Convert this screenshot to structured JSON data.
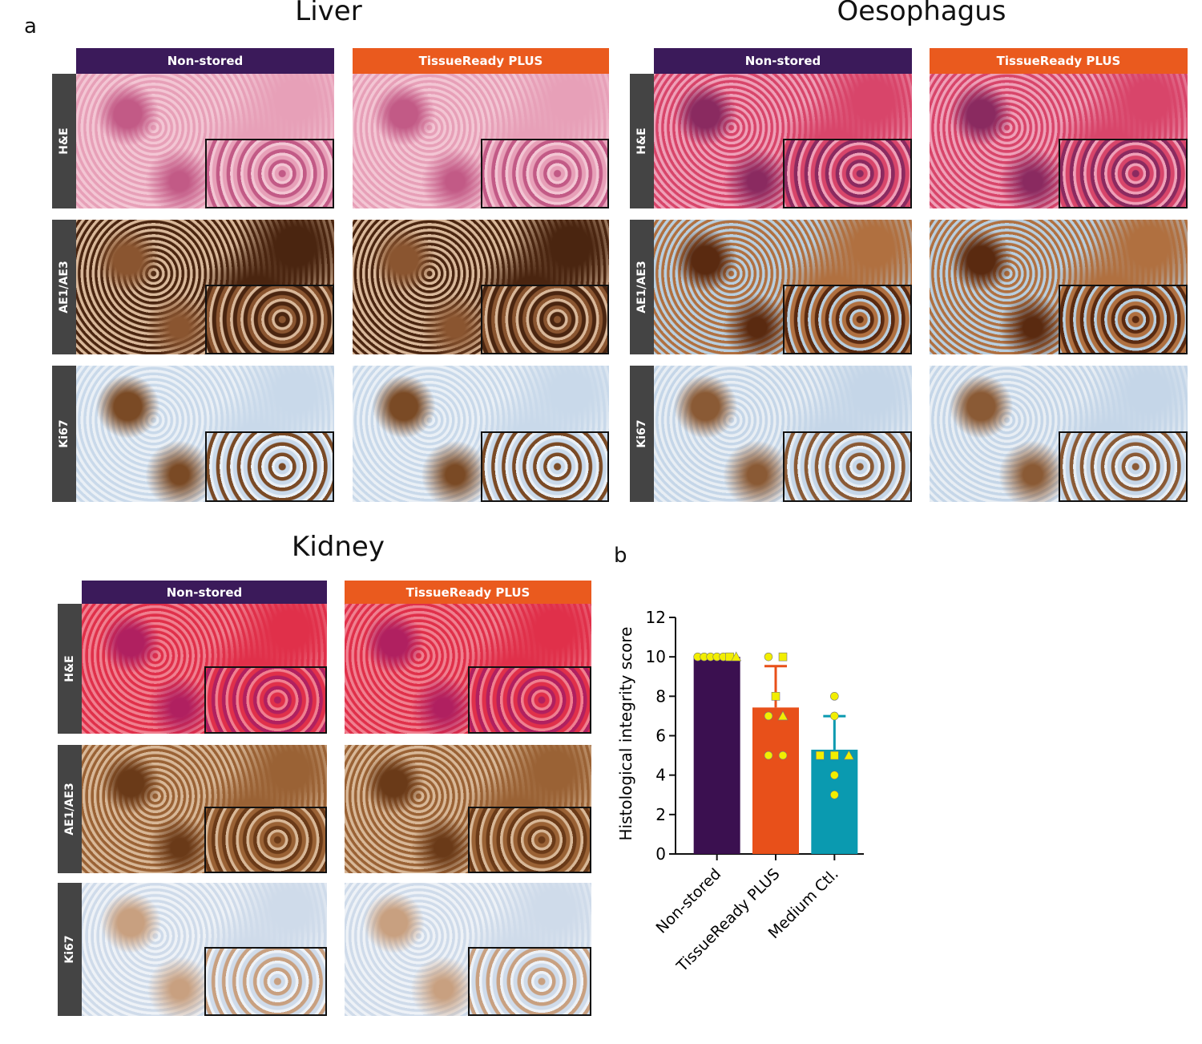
{
  "panel_labels": [
    "a",
    "b"
  ],
  "panels": [
    {
      "title": "Liver",
      "columns": [
        "Non-stored",
        "TissueReady PLUS"
      ],
      "rows": [
        "H&E",
        "AE1/AE3",
        "Ki67"
      ]
    },
    {
      "title": "Oesophagus",
      "columns": [
        "Non-stored",
        "TissueReady PLUS"
      ],
      "rows": [
        "H&E",
        "AE1/AE3",
        "Ki67"
      ]
    },
    {
      "title": "Kidney",
      "columns": [
        "Non-stored",
        "TissueReady PLUS"
      ],
      "rows": [
        "H&E",
        "AE1/AE3",
        "Ki67"
      ]
    }
  ],
  "chart_data": {
    "type": "bar",
    "ylabel": "Histological integrity score",
    "categories": [
      "Non-stored",
      "TissueReady PLUS",
      "Medium Ctl."
    ],
    "values": [
      10,
      7.43,
      5.29
    ],
    "errors": [
      0,
      2.1,
      1.7
    ],
    "colors": [
      "#3b1050",
      "#e8501a",
      "#0a9ab0"
    ],
    "points": [
      [
        10,
        10,
        10,
        10,
        10,
        10,
        10
      ],
      [
        10,
        10,
        8,
        7,
        7,
        5,
        5
      ],
      [
        8,
        7,
        5,
        5,
        5,
        4,
        3
      ]
    ],
    "point_shapes": [
      [
        "circle",
        "circle",
        "circle",
        "circle",
        "circle",
        "square",
        "triangle"
      ],
      [
        "circle",
        "square",
        "square",
        "circle",
        "triangle",
        "circle",
        "circle"
      ],
      [
        "circle",
        "circle",
        "square",
        "square",
        "triangle",
        "circle",
        "circle"
      ]
    ],
    "point_color": "#f2ee00",
    "ylim": [
      0,
      12
    ],
    "yticks": [
      0,
      2,
      4,
      6,
      8,
      10,
      12
    ]
  }
}
